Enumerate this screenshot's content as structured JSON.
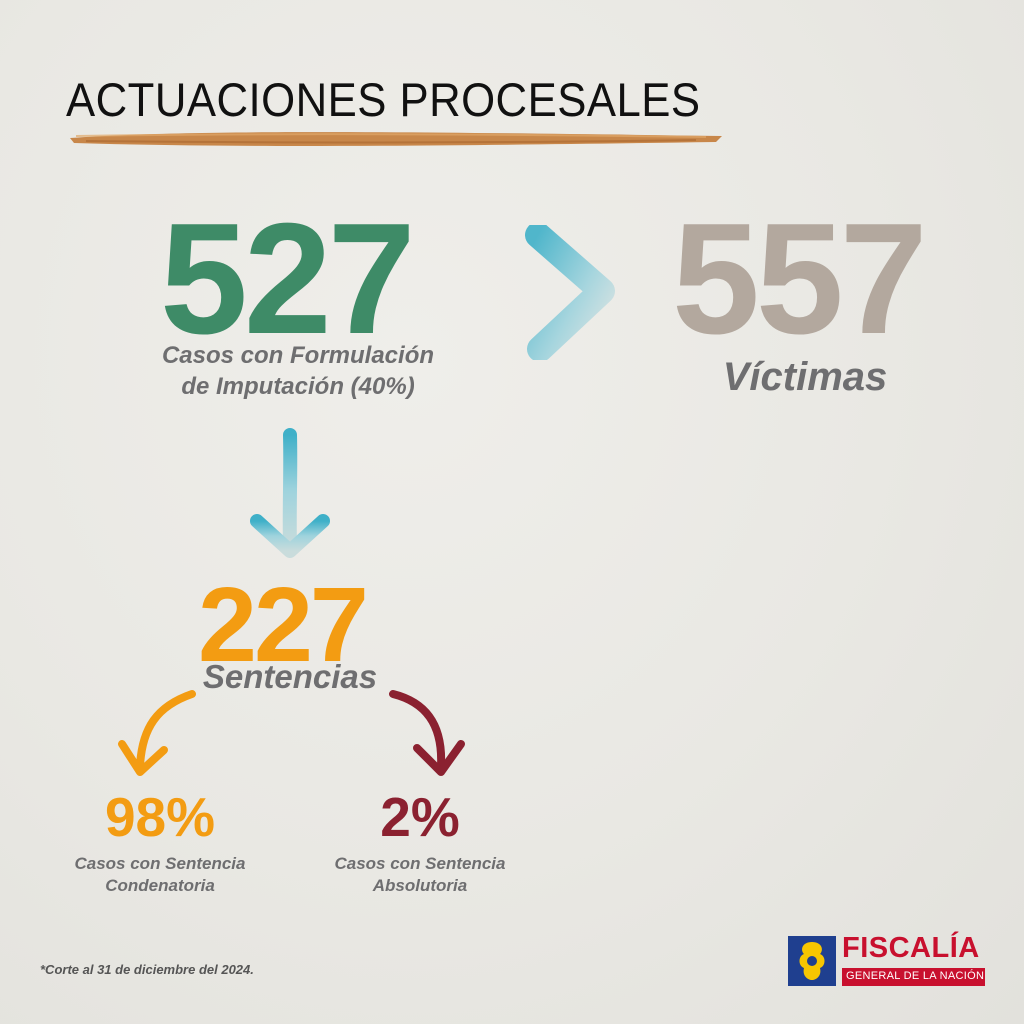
{
  "header": {
    "title": "ACTUACIONES PROCESALES"
  },
  "stats": {
    "imputation_count": "527",
    "imputation_label_line1": "Casos con Formulación",
    "imputation_label_line2": "de Imputación (40%)",
    "victims_count": "557",
    "victims_label": "Víctimas",
    "sentences_count": "227",
    "sentences_label": "Sentencias",
    "condemnatory_pct": "98%",
    "condemnatory_label_line1": "Casos con Sentencia",
    "condemnatory_label_line2": "Condenatoria",
    "acquittal_pct": "2%",
    "acquittal_label_line1": "Casos con Sentencia",
    "acquittal_label_line2": "Absolutoria"
  },
  "footnote": "*Corte al 31 de diciembre del 2024.",
  "logo": {
    "name": "FISCALÍA",
    "subtitle": "GENERAL DE LA NACIÓN"
  },
  "colors": {
    "green": "#3e8b67",
    "taupe": "#b3a89e",
    "orange": "#f39c12",
    "maroon": "#8b2130",
    "teal_arrow": "#4fb3c9",
    "logo_red": "#c8102e",
    "logo_blue": "#1f3f8f",
    "logo_yellow": "#f7c600",
    "brush": "#c8874a"
  },
  "icons": [
    "brush-underline-icon",
    "chevron-right-icon",
    "arrow-down-icon",
    "curved-arrow-left-icon",
    "curved-arrow-right-icon",
    "coat-of-arms-icon"
  ]
}
